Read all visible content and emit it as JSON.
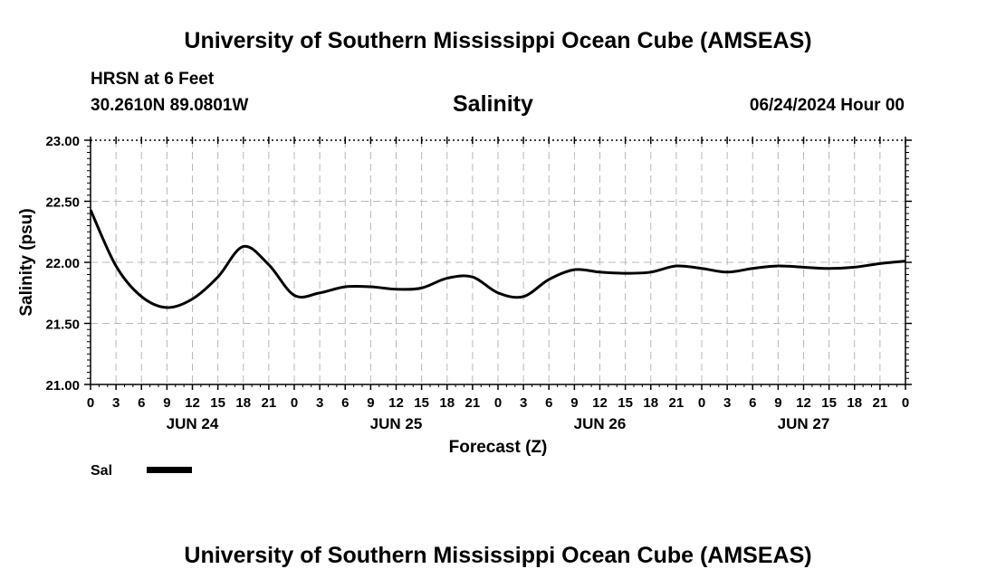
{
  "header": {
    "title": "University of Southern Mississippi Ocean Cube (AMSEAS)",
    "station": "HRSN at 6 Feet",
    "coordinates": "30.2610N  89.0801W",
    "chart_title": "Salinity",
    "datetime": "06/24/2024 Hour 00"
  },
  "footer": {
    "title": "University of Southern Mississippi Ocean Cube (AMSEAS)"
  },
  "chart_data": {
    "type": "line",
    "title": "Salinity",
    "xlabel": "Forecast (Z)",
    "ylabel": "Salinity (psu)",
    "xlim": [
      0,
      96
    ],
    "ylim": [
      21.0,
      23.0
    ],
    "grid": true,
    "x_tick_step_hours": 3,
    "x_tick_labels": [
      "0",
      "3",
      "6",
      "9",
      "12",
      "15",
      "18",
      "21",
      "0",
      "3",
      "6",
      "9",
      "12",
      "15",
      "18",
      "21",
      "0",
      "3",
      "6",
      "9",
      "12",
      "15",
      "18",
      "21",
      "0",
      "3",
      "6",
      "9",
      "12",
      "15",
      "18",
      "21",
      "0"
    ],
    "y_tick_labels": [
      "23.00",
      "22.50",
      "22.00",
      "21.50",
      "21.00"
    ],
    "y_ticks": [
      23.0,
      22.5,
      22.0,
      21.5,
      21.0
    ],
    "day_labels": [
      {
        "text": "JUN 24",
        "hour": 12
      },
      {
        "text": "JUN 25",
        "hour": 36
      },
      {
        "text": "JUN 26",
        "hour": 60
      },
      {
        "text": "JUN 27",
        "hour": 84
      }
    ],
    "legend": "bottom-left",
    "series": [
      {
        "name": "Sal",
        "x": [
          0,
          3,
          6,
          9,
          12,
          15,
          18,
          21,
          24,
          27,
          30,
          33,
          36,
          39,
          42,
          45,
          48,
          51,
          54,
          57,
          60,
          63,
          66,
          69,
          72,
          75,
          78,
          81,
          84,
          87,
          90,
          93,
          96
        ],
        "values": [
          22.43,
          21.97,
          21.72,
          21.63,
          21.7,
          21.88,
          22.13,
          21.98,
          21.73,
          21.75,
          21.8,
          21.8,
          21.78,
          21.79,
          21.87,
          21.88,
          21.75,
          21.72,
          21.86,
          21.94,
          21.92,
          21.91,
          21.92,
          21.97,
          21.95,
          21.92,
          21.95,
          21.97,
          21.96,
          21.95,
          21.96,
          21.99,
          22.01
        ]
      }
    ]
  }
}
